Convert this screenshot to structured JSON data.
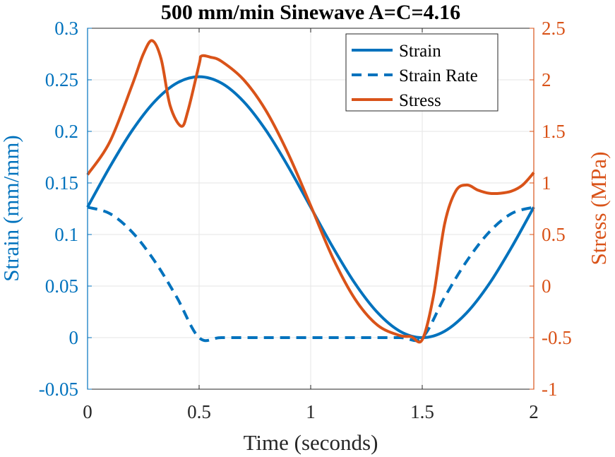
{
  "chart_data": {
    "type": "line",
    "title": "500 mm/min Sinewave A=C=4.16",
    "xlabel": "Time (seconds)",
    "ylabel_left": "Strain (mm/mm)",
    "ylabel_right": "Stress (MPa)",
    "xlim": [
      0,
      2
    ],
    "ylim_left": [
      -0.05,
      0.3
    ],
    "ylim_right": [
      -1,
      2.5
    ],
    "xticks": [
      "0",
      "0.5",
      "1",
      "1.5",
      "2"
    ],
    "yticks_left": [
      "-0.05",
      "0",
      "0.05",
      "0.1",
      "0.15",
      "0.2",
      "0.25",
      "0.3"
    ],
    "yticks_right": [
      "-1",
      "-0.5",
      "0",
      "0.5",
      "1",
      "1.5",
      "2",
      "2.5"
    ],
    "grid": true,
    "legend_position": "top-right",
    "colors": {
      "left_axis": "#0072BD",
      "right_axis": "#D95319"
    },
    "series": [
      {
        "name": "Strain",
        "axis": "left",
        "style": "solid",
        "color": "#0072BD",
        "x": [
          0,
          0.1,
          0.2,
          0.3,
          0.4,
          0.5,
          0.6,
          0.7,
          0.8,
          0.9,
          1.0,
          1.1,
          1.2,
          1.3,
          1.4,
          1.5,
          1.6,
          1.7,
          1.8,
          1.9,
          2.0
        ],
        "values": [
          0.1265,
          0.1656,
          0.2009,
          0.2288,
          0.2468,
          0.253,
          0.2468,
          0.2288,
          0.2009,
          0.1656,
          0.1265,
          0.0874,
          0.0521,
          0.0242,
          0.0062,
          0.0,
          0.0062,
          0.0242,
          0.0521,
          0.0874,
          0.1265
        ]
      },
      {
        "name": "Strain Rate",
        "axis": "left",
        "style": "dashed",
        "color": "#0072BD",
        "x": [
          0,
          0.1,
          0.2,
          0.3,
          0.4,
          0.5,
          0.6,
          0.8,
          1.0,
          1.2,
          1.4,
          1.5,
          1.6,
          1.7,
          1.8,
          1.9,
          2.0
        ],
        "values": [
          0.1265,
          0.1203,
          0.1023,
          0.0744,
          0.0391,
          0.0,
          0.0,
          0.0,
          0.0,
          0.0,
          0.0,
          0.0,
          0.0391,
          0.0744,
          0.1023,
          0.1203,
          0.1265
        ]
      },
      {
        "name": "Stress",
        "axis": "right",
        "style": "solid",
        "color": "#D95319",
        "x": [
          0,
          0.1,
          0.2,
          0.25,
          0.29,
          0.33,
          0.37,
          0.42,
          0.45,
          0.5,
          0.51,
          0.55,
          0.6,
          0.7,
          0.8,
          0.9,
          1.0,
          1.1,
          1.2,
          1.3,
          1.4,
          1.45,
          1.5,
          1.55,
          1.6,
          1.65,
          1.7,
          1.75,
          1.8,
          1.85,
          1.9,
          1.95,
          2.0
        ],
        "values": [
          1.08,
          1.4,
          1.95,
          2.25,
          2.38,
          2.2,
          1.75,
          1.55,
          1.7,
          2.15,
          2.23,
          2.22,
          2.18,
          2.0,
          1.7,
          1.28,
          0.78,
          0.27,
          -0.13,
          -0.38,
          -0.48,
          -0.49,
          -0.52,
          -0.1,
          0.6,
          0.92,
          0.98,
          0.93,
          0.9,
          0.9,
          0.92,
          0.98,
          1.1
        ]
      }
    ]
  }
}
